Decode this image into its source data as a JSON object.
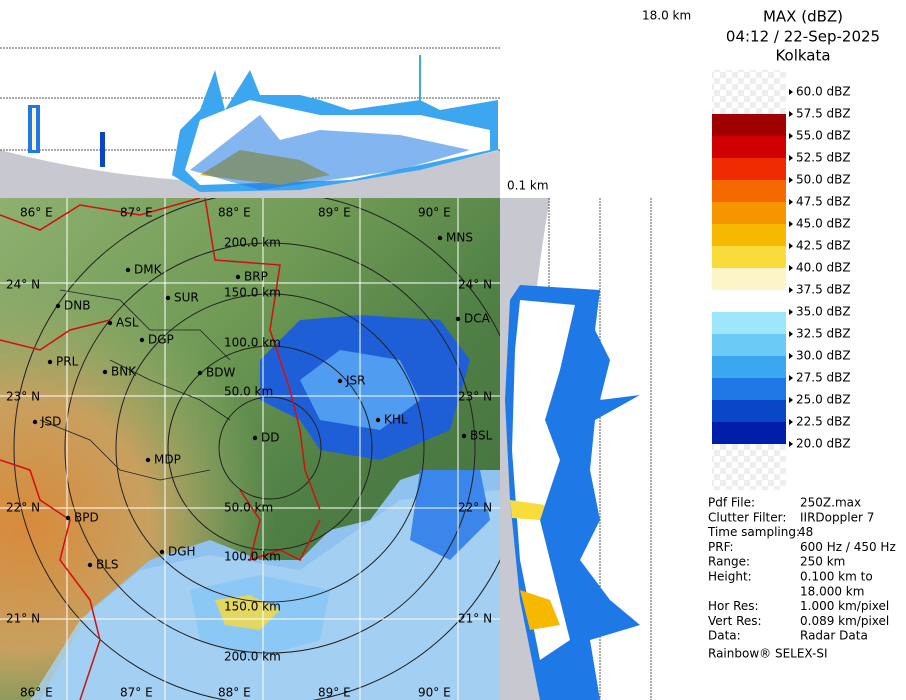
{
  "header": {
    "title": "MAX (dBZ)",
    "time": "04:12 / 22-Sep-2025",
    "location": "Kolkata"
  },
  "panels": {
    "top_height": "18.0 km",
    "bottom_height": "0.1 km"
  },
  "scale": {
    "labels": [
      "60.0 dBZ",
      "57.5 dBZ",
      "55.0 dBZ",
      "52.5 dBZ",
      "50.0 dBZ",
      "47.5 dBZ",
      "45.0 dBZ",
      "42.5 dBZ",
      "40.0 dBZ",
      "37.5 dBZ",
      "35.0 dBZ",
      "32.5 dBZ",
      "30.0 dBZ",
      "27.5 dBZ",
      "25.0 dBZ",
      "22.5 dBZ",
      "20.0 dBZ"
    ],
    "colors": [
      "#f2f2f2",
      "#a00000",
      "#d00000",
      "#ee2a00",
      "#f56a00",
      "#f79500",
      "#f7b800",
      "#f7dc3c",
      "#fbf5c8",
      "#ffffff",
      "#9ee6fb",
      "#6ccaf7",
      "#3ca6f0",
      "#1e78e6",
      "#0a46c8",
      "#001eaa"
    ]
  },
  "info": {
    "rows": [
      [
        "Pdf File:",
        "250Z.max"
      ],
      [
        "Clutter Filter:",
        "IIRDoppler 7"
      ],
      [
        "Time sampling:",
        "48"
      ],
      [
        "PRF:",
        "600 Hz / 450 Hz"
      ],
      [
        "Range:",
        "250 km"
      ],
      [
        "Height:",
        "0.100 km to"
      ],
      [
        "",
        "18.000 km"
      ],
      [
        "Hor Res:",
        "1.000 km/pixel"
      ],
      [
        "Vert Res:",
        "0.089 km/pixel"
      ],
      [
        "Data:",
        "Radar Data"
      ]
    ],
    "footer": "Rainbow® SELEX-SI"
  },
  "map": {
    "lon_labels": [
      "86° E",
      "87° E",
      "88° E",
      "89° E",
      "90° E"
    ],
    "lat_labels": [
      "24° N",
      "23° N",
      "22° N",
      "21° N"
    ],
    "range_labels": [
      "200.0 km",
      "150.0 km",
      "100.0 km",
      "50.0 km",
      "50.0 km",
      "100.0 km",
      "150.0 km",
      "200.0 km"
    ],
    "cities": [
      "DMK",
      "BRP",
      "MNS",
      "DNB",
      "SUR",
      "ASL",
      "DGP",
      "DCA",
      "PRL",
      "BNK",
      "BDW",
      "JSR",
      "JSD",
      "KHL",
      "BSL",
      "DD",
      "MDP",
      "BPD",
      "DGH",
      "BLS"
    ]
  }
}
